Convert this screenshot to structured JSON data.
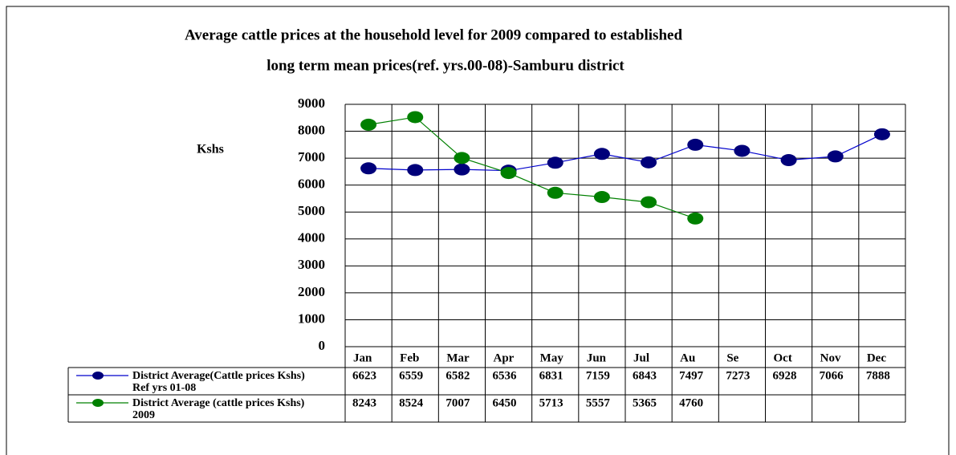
{
  "chart_data": {
    "type": "line",
    "title": "Average cattle prices at the household level for 2009 compared to established",
    "subtitle": "long term mean prices(ref. yrs.00-08)-Samburu district",
    "y_label": "Kshs",
    "categories": [
      "Jan",
      "Feb",
      "Mar",
      "Apr",
      "May",
      "Jun",
      "Jul",
      "Au",
      "Se",
      "Oct",
      "Nov",
      "Dec"
    ],
    "series": [
      {
        "name": "District Average(Cattle prices Kshs) Ref yrs 01-08",
        "color": "#0000cc",
        "marker_color": "#00007a",
        "values": [
          6623,
          6559,
          6582,
          6536,
          6831,
          7159,
          6843,
          7497,
          7273,
          6928,
          7066,
          7888
        ]
      },
      {
        "name": "District Average (cattle prices Kshs) 2009",
        "color": "#008000",
        "marker_color": "#008000",
        "values": [
          8243,
          8524,
          7007,
          6450,
          5713,
          5557,
          5365,
          4760,
          null,
          null,
          null,
          null
        ]
      }
    ],
    "ylim": [
      0,
      9000
    ],
    "yticks": [
      0,
      1000,
      2000,
      3000,
      4000,
      5000,
      6000,
      7000,
      8000,
      9000
    ],
    "grid": true,
    "data_table": true
  }
}
